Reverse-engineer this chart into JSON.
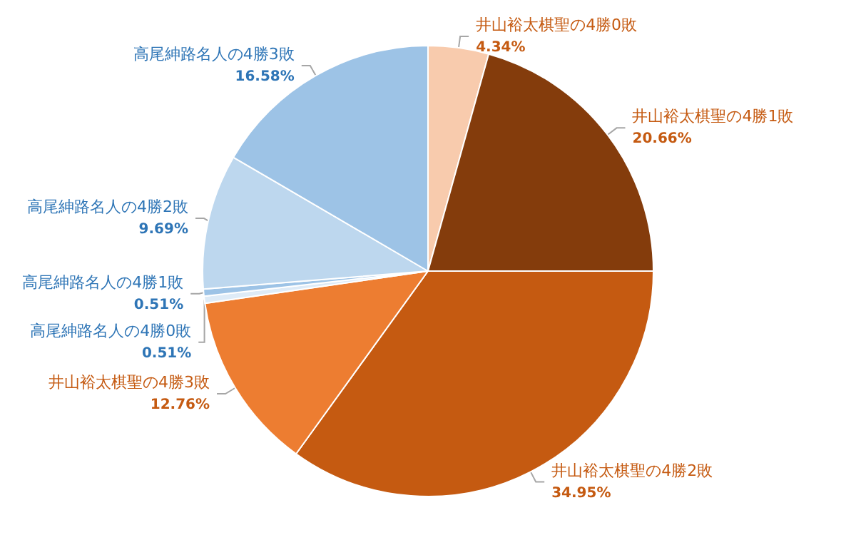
{
  "chart_data": {
    "type": "pie",
    "categories": [
      "井山裕太棋聖の4勝0敗",
      "井山裕太棋聖の4勝1敗",
      "井山裕太棋聖の4勝2敗",
      "井山裕太棋聖の4勝3敗",
      "高尾紳路名人の4勝0敗",
      "高尾紳路名人の4勝1敗",
      "高尾紳路名人の4勝2敗",
      "高尾紳路名人の4勝3敗"
    ],
    "values": [
      4.34,
      20.66,
      34.95,
      12.76,
      0.51,
      0.51,
      9.69,
      16.58
    ],
    "value_labels": [
      "4.34%",
      "20.66%",
      "34.95%",
      "12.76%",
      "0.51%",
      "0.51%",
      "9.69%",
      "16.58%"
    ],
    "colors": [
      "#f8cbad",
      "#843c0c",
      "#c55a11",
      "#ed7d31",
      "#deebf7",
      "#9dc3e6",
      "#bdd7ee",
      "#9dc3e6"
    ],
    "legend": false
  }
}
